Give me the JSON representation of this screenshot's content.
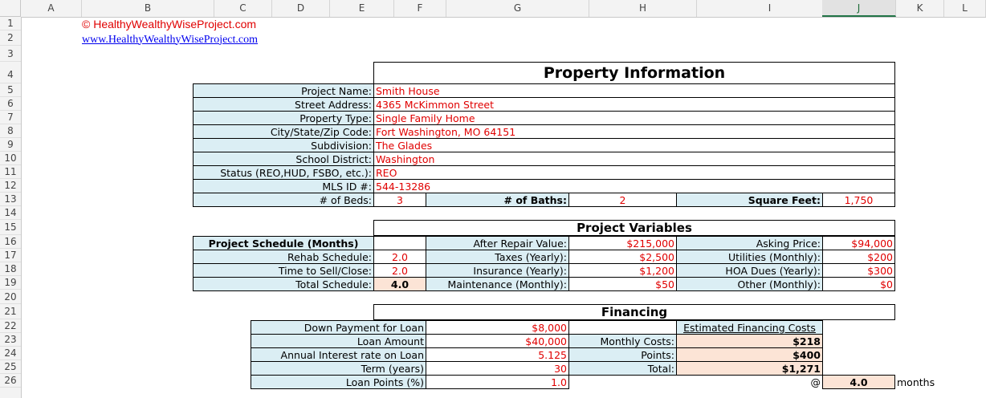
{
  "columns": [
    "A",
    "B",
    "C",
    "D",
    "E",
    "F",
    "G",
    "H",
    "I",
    "J",
    "K",
    "L"
  ],
  "selected_column": "J",
  "rows": [
    "1",
    "2",
    "3",
    "4",
    "5",
    "6",
    "7",
    "8",
    "9",
    "10",
    "11",
    "12",
    "13",
    "14",
    "15",
    "16",
    "17",
    "18",
    "19",
    "20",
    "21",
    "22",
    "23",
    "24",
    "25",
    "26"
  ],
  "header": {
    "copyright": "© HealthyWealthyWiseProject.com",
    "link": "www.HealthyWealthyWiseProject.com"
  },
  "property": {
    "title": "Property Information",
    "fields": [
      {
        "label": "Project Name:",
        "value": "Smith House"
      },
      {
        "label": "Street Address:",
        "value": "4365 McKimmon Street"
      },
      {
        "label": "Property Type:",
        "value": "Single Family Home"
      },
      {
        "label": "City/State/Zip Code:",
        "value": "Fort Washington, MO 64151"
      },
      {
        "label": "Subdivision:",
        "value": "The Glades"
      },
      {
        "label": "School District:",
        "value": "Washington"
      },
      {
        "label": "Status (REO,HUD, FSBO, etc.):",
        "value": "REO"
      },
      {
        "label": "MLS ID #:",
        "value": "544-13286"
      }
    ],
    "beds_label": "# of Beds:",
    "beds": "3",
    "baths_label": "# of Baths:",
    "baths": "2",
    "sqft_label": "Square Feet:",
    "sqft": "1,750"
  },
  "variables": {
    "title": "Project Variables",
    "schedule_header": "Project Schedule (Months)",
    "rehab_label": "Rehab Schedule:",
    "rehab": "2.0",
    "sell_label": "Time to Sell/Close:",
    "sell": "2.0",
    "total_label": "Total Schedule:",
    "total": "4.0",
    "middle": [
      {
        "label": "After Repair Value:",
        "value": "$215,000"
      },
      {
        "label": "Taxes (Yearly):",
        "value": "$2,500"
      },
      {
        "label": "Insurance (Yearly):",
        "value": "$1,200"
      },
      {
        "label": "Maintenance (Monthly):",
        "value": "$50"
      }
    ],
    "right": [
      {
        "label": "Asking Price:",
        "value": "$94,000"
      },
      {
        "label": "Utilities (Monthly):",
        "value": "$200"
      },
      {
        "label": "HOA Dues (Yearly):",
        "value": "$300"
      },
      {
        "label": "Other (Monthly):",
        "value": "$0"
      }
    ]
  },
  "financing": {
    "title": "Financing",
    "inputs": [
      {
        "label": "Down Payment for Loan",
        "value": "$8,000"
      },
      {
        "label": "Loan Amount",
        "value": "$40,000"
      },
      {
        "label": "Annual Interest rate on Loan",
        "value": "5.125"
      },
      {
        "label": "Term (years)",
        "value": "30"
      },
      {
        "label": "Loan Points (%)",
        "value": "1.0"
      }
    ],
    "costs_header": "Estimated Financing Costs",
    "monthly_label": "Monthly Costs:",
    "monthly": "$218",
    "points_label": "Points:",
    "points": "$400",
    "total_label": "Total:",
    "total": "$1,271",
    "at": "@",
    "months_value": "4.0",
    "months_label": "months"
  }
}
